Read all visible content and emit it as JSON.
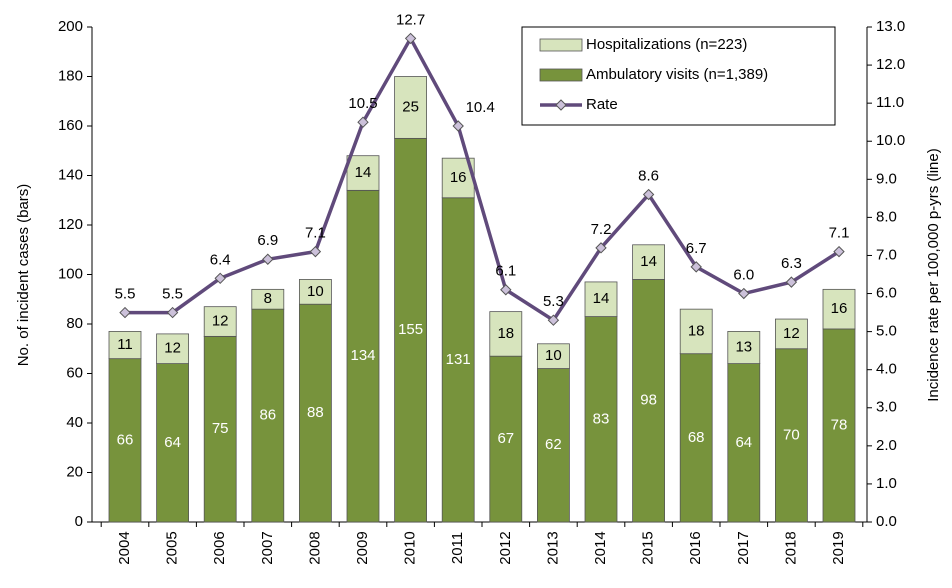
{
  "chart_data": {
    "type": "bar",
    "categories": [
      "2004",
      "2005",
      "2006",
      "2007",
      "2008",
      "2009",
      "2010",
      "2011",
      "2012",
      "2013",
      "2014",
      "2015",
      "2016",
      "2017",
      "2018",
      "2019"
    ],
    "series": [
      {
        "name": "Ambulatory visits (n=1,389)",
        "color": "#77933c",
        "stack": true,
        "values": [
          66,
          64,
          75,
          86,
          88,
          134,
          155,
          131,
          67,
          62,
          83,
          98,
          68,
          64,
          70,
          78
        ]
      },
      {
        "name": "Hospitalizations (n=223)",
        "color": "#d7e4bd",
        "stack": true,
        "values": [
          11,
          12,
          12,
          8,
          10,
          14,
          25,
          16,
          18,
          10,
          14,
          14,
          18,
          13,
          12,
          16
        ]
      },
      {
        "name": "Rate",
        "color": "#604a7b",
        "type": "line",
        "axis": "y2",
        "marker_color": "#ccc1da",
        "values": [
          5.5,
          5.5,
          6.4,
          6.9,
          7.1,
          10.5,
          12.7,
          10.4,
          6.1,
          5.3,
          7.2,
          8.6,
          6.7,
          6.0,
          6.3,
          7.1
        ],
        "value_labels": [
          "5.5",
          "5.5",
          "6.4",
          "6.9",
          "7.1",
          "10.5",
          "12.7",
          "10.4",
          "6.1",
          "5.3",
          "7.2",
          "8.6",
          "6.7",
          "6.0",
          "6.3",
          "7.1"
        ]
      }
    ],
    "ylabel": "No. of incident cases (bars)",
    "y2label": "Incidence rate per 100,000 p-yrs (line)",
    "ylim": [
      0,
      200
    ],
    "yticks": [
      0,
      20,
      40,
      60,
      80,
      100,
      120,
      140,
      160,
      180,
      200
    ],
    "y2lim": [
      0,
      13
    ],
    "y2ticks": [
      {
        "value": 0,
        "label": "0.0"
      },
      {
        "value": 1,
        "label": "1.0"
      },
      {
        "value": 2,
        "label": "2.0"
      },
      {
        "value": 3,
        "label": "3.0"
      },
      {
        "value": 4,
        "label": "4.0"
      },
      {
        "value": 5,
        "label": "5.0"
      },
      {
        "value": 6,
        "label": "6.0"
      },
      {
        "value": 7,
        "label": "7.0"
      },
      {
        "value": 8,
        "label": "8.0"
      },
      {
        "value": 9,
        "label": "9.0"
      },
      {
        "value": 10,
        "label": "10.0"
      },
      {
        "value": 11,
        "label": "11.0"
      },
      {
        "value": 12,
        "label": "12.0"
      },
      {
        "value": 13,
        "label": "13.0"
      }
    ],
    "legend": "upper right"
  }
}
